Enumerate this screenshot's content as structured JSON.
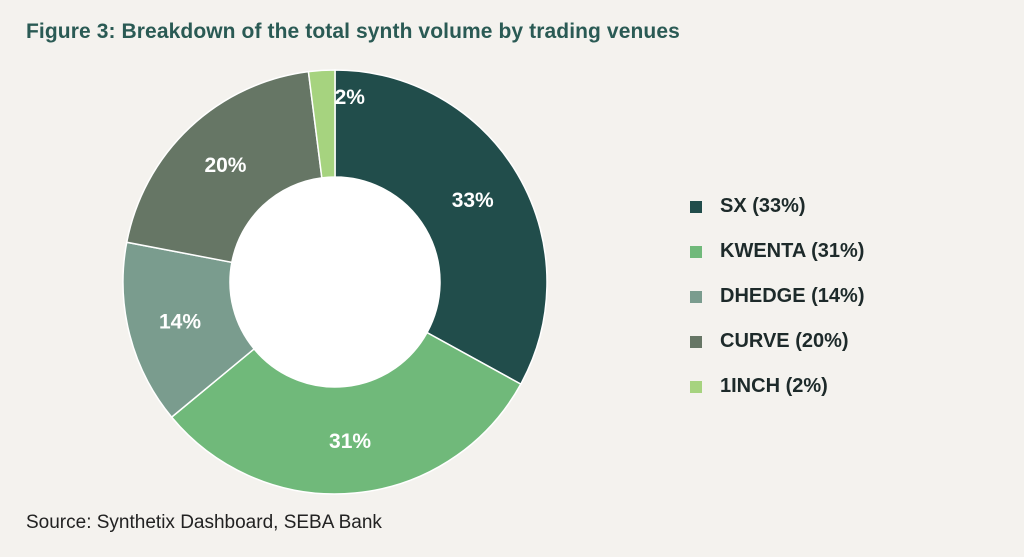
{
  "title": "Figure 3: Breakdown of the total synth volume by trading venues",
  "source": "Source: Synthetix Dashboard, SEBA Bank",
  "colors": {
    "background": "#f4f2ee",
    "title": "#2a5a54"
  },
  "chart_data": {
    "type": "pie",
    "variant": "donut",
    "title": "Figure 3: Breakdown of the total synth volume by trading venues",
    "legend_position": "right",
    "slices": [
      {
        "name": "SX",
        "value": 33,
        "label": "33%",
        "legend": "SX (33%)",
        "color": "#214d4b"
      },
      {
        "name": "KWENTA",
        "value": 31,
        "label": "31%",
        "legend": "KWENTA (31%)",
        "color": "#70b97a"
      },
      {
        "name": "DHEDGE",
        "value": 14,
        "label": "14%",
        "legend": "DHEDGE (14%)",
        "color": "#7a9c8e"
      },
      {
        "name": "CURVE",
        "value": 20,
        "label": "20%",
        "legend": "CURVE (20%)",
        "color": "#667665"
      },
      {
        "name": "1INCH",
        "value": 2,
        "label": "2%",
        "legend": "1INCH (2%)",
        "color": "#a6d37f"
      }
    ]
  }
}
